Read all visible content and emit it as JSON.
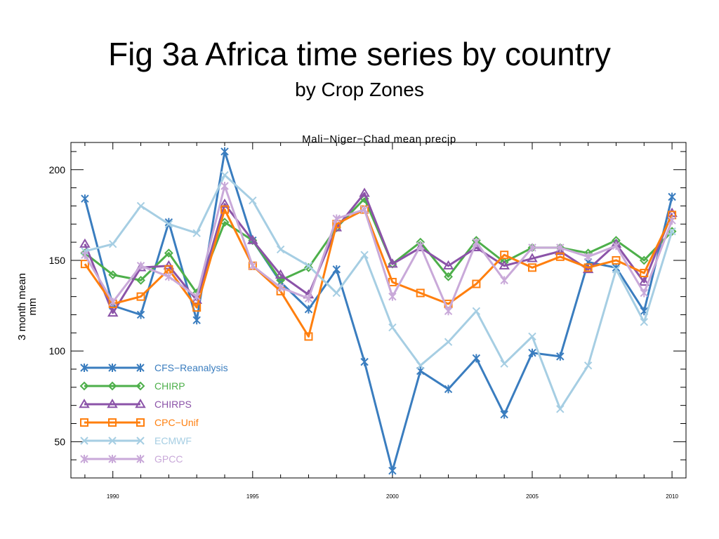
{
  "slide": {
    "title": "Fig 3a Africa time series by country",
    "subtitle": "by Crop Zones"
  },
  "chart_data": {
    "type": "line",
    "title": "Mali−Niger−Chad mean precip",
    "xlabel": "",
    "ylabel_line1": "3 month mean",
    "ylabel_line2": "mm",
    "x": [
      1989,
      1990,
      1991,
      1992,
      1993,
      1994,
      1995,
      1996,
      1997,
      1998,
      1999,
      2000,
      2001,
      2002,
      2003,
      2004,
      2005,
      2006,
      2007,
      2008,
      2009,
      2010
    ],
    "xlim": [
      1988.5,
      2010.5
    ],
    "ylim": [
      30,
      215
    ],
    "x_ticks": [
      1990,
      1995,
      2000,
      2005,
      2010
    ],
    "y_ticks": [
      50,
      100,
      150,
      200
    ],
    "legend_position": "bottom-left",
    "series": [
      {
        "name": "CFS−Reanalysis",
        "color": "#3a7dbf",
        "marker": "asterisk",
        "values": [
          184,
          125,
          120,
          171,
          117,
          210,
          161,
          138,
          123,
          145,
          94,
          34,
          89,
          79,
          96,
          65,
          99,
          97,
          149,
          146,
          122,
          185
        ]
      },
      {
        "name": "CHIRP",
        "color": "#4daf4a",
        "marker": "diamond",
        "values": [
          154,
          142,
          139,
          154,
          132,
          171,
          161,
          139,
          146,
          168,
          184,
          148,
          160,
          141,
          161,
          149,
          157,
          157,
          154,
          161,
          150,
          166
        ]
      },
      {
        "name": "CHIRPS",
        "color": "#8b53a8",
        "marker": "triangle",
        "values": [
          159,
          121,
          146,
          147,
          128,
          181,
          161,
          142,
          131,
          168,
          187,
          148,
          157,
          147,
          157,
          147,
          151,
          155,
          145,
          159,
          138,
          176
        ]
      },
      {
        "name": "CPC−Unif",
        "color": "#ff7f0e",
        "marker": "square",
        "values": [
          148,
          126,
          130,
          145,
          124,
          178,
          147,
          133,
          108,
          170,
          178,
          138,
          132,
          126,
          137,
          153,
          146,
          152,
          146,
          150,
          143,
          175
        ]
      },
      {
        "name": "ECMWF",
        "color": "#a6cee3",
        "marker": "x",
        "values": [
          155,
          159,
          180,
          170,
          165,
          197,
          183,
          156,
          147,
          132,
          153,
          113,
          92,
          105,
          122,
          93,
          108,
          68,
          92,
          145,
          116,
          166
        ]
      },
      {
        "name": "GPCC",
        "color": "#c9a9d9",
        "marker": "asterisk",
        "values": [
          153,
          127,
          147,
          141,
          130,
          191,
          147,
          135,
          129,
          173,
          178,
          130,
          158,
          122,
          160,
          139,
          157,
          157,
          152,
          158,
          132,
          172
        ]
      }
    ]
  }
}
